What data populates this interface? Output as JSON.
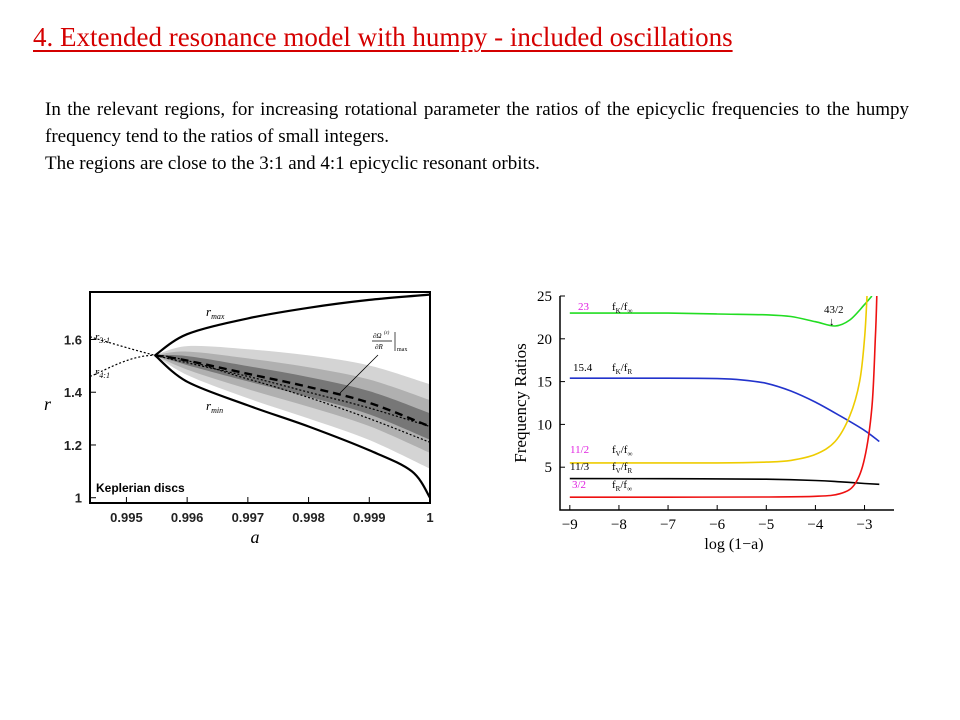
{
  "slide": {
    "title": "4. Extended resonance model with humpy - included oscillations",
    "paragraph1": "In the relevant regions, for increasing rotational parameter the ratios of the epicyclic frequencies to the humpy frequency tend to the ratios of small integers.",
    "paragraph2": "The regions are close to the 3:1 and 4:1 epicyclic resonant orbits."
  },
  "chart_data": [
    {
      "type": "line",
      "xlabel": "a",
      "ylabel": "r",
      "xlim": [
        0.9944,
        1.0
      ],
      "ylim": [
        0.98,
        1.78
      ],
      "x_ticks": [
        "0.995",
        "0.996",
        "0.997",
        "0.998",
        "0.999",
        "1"
      ],
      "y_ticks": [
        "1",
        "1.2",
        "1.4",
        "1.6"
      ],
      "grid": false,
      "annotations": {
        "r_max": "r",
        "r_max_sub": "max",
        "r_min": "r",
        "r_min_sub": "min",
        "r_31": "r",
        "r_31_sub": "3:1",
        "r_41": "r",
        "r_41_sub": "4:1",
        "bottom_label": "Keplerian discs"
      },
      "series": [
        {
          "name": "r_max",
          "points": [
            [
              0.99547,
              1.54
            ],
            [
              0.996,
              1.62
            ],
            [
              0.997,
              1.68
            ],
            [
              0.998,
              1.72
            ],
            [
              0.999,
              1.75
            ],
            [
              1.0,
              1.77
            ]
          ]
        },
        {
          "name": "r_min",
          "points": [
            [
              0.99547,
              1.54
            ],
            [
              0.996,
              1.44
            ],
            [
              0.997,
              1.35
            ],
            [
              0.998,
              1.27
            ],
            [
              0.999,
              1.18
            ],
            [
              0.9997,
              1.1
            ],
            [
              1.0,
              1.0
            ]
          ]
        },
        {
          "name": "r_3:1",
          "points": [
            [
              0.9944,
              1.61
            ],
            [
              0.99547,
              1.54
            ],
            [
              0.997,
              1.46
            ],
            [
              0.998,
              1.4
            ],
            [
              0.999,
              1.34
            ],
            [
              1.0,
              1.27
            ]
          ]
        },
        {
          "name": "r_4:1",
          "points": [
            [
              0.9944,
              1.46
            ],
            [
              0.99547,
              1.54
            ],
            [
              0.997,
              1.45
            ],
            [
              0.998,
              1.38
            ],
            [
              0.999,
              1.3
            ],
            [
              1.0,
              1.21
            ]
          ]
        },
        {
          "name": "r_peak",
          "points": [
            [
              0.99547,
              1.54
            ],
            [
              0.996,
              1.52
            ],
            [
              0.997,
              1.47
            ],
            [
              0.998,
              1.42
            ],
            [
              0.999,
              1.36
            ],
            [
              1.0,
              1.27
            ]
          ]
        }
      ]
    },
    {
      "type": "line",
      "xlabel": "log (1−a)",
      "ylabel": "Frequency Ratios",
      "xlim": [
        -9.2,
        -2.4
      ],
      "ylim": [
        0,
        25
      ],
      "x_ticks": [
        "−9",
        "−8",
        "−7",
        "−6",
        "−5",
        "−4",
        "−3"
      ],
      "y_ticks": [
        "5",
        "10",
        "15",
        "20",
        "25"
      ],
      "grid": false,
      "annotations": {
        "k_hump_value": "23",
        "k_r_value": "15.4",
        "v_hump_value": "11/2",
        "v_r_value": "11/3",
        "r_hump_value": "3/2",
        "peak_label": "43/2",
        "peak_arrow": "↓",
        "k_hump_lbl_f": "f",
        "k_hump_lbl_s1": "K",
        "k_hump_lbl_mid": "/f",
        "k_hump_lbl_s2": "∞",
        "k_r_lbl_f": "f",
        "k_r_lbl_s1": "K",
        "k_r_lbl_mid": "/f",
        "k_r_lbl_s2": "R",
        "v_hump_lbl_f": "f",
        "v_hump_lbl_s1": "V",
        "v_hump_lbl_mid": "/f",
        "v_hump_lbl_s2": "∞",
        "v_r_lbl_f": "f",
        "v_r_lbl_s1": "V",
        "v_r_lbl_mid": "/f",
        "v_r_lbl_s2": "R",
        "r_hump_lbl_f": "f",
        "r_hump_lbl_s1": "R",
        "r_hump_lbl_mid": "/f",
        "r_hump_lbl_s2": "∞"
      },
      "series": [
        {
          "name": "f_K/f_hump",
          "color": "#22dd22",
          "points": [
            [
              -9,
              23.0
            ],
            [
              -8,
              23.0
            ],
            [
              -7,
              23.0
            ],
            [
              -6,
              22.9
            ],
            [
              -5,
              22.8
            ],
            [
              -4.5,
              22.6
            ],
            [
              -4,
              22.0
            ],
            [
              -3.6,
              21.5
            ],
            [
              -3.3,
              22.2
            ],
            [
              -3.0,
              24.0
            ],
            [
              -2.85,
              25.0
            ]
          ]
        },
        {
          "name": "f_K/f_R",
          "color": "#2233cc",
          "points": [
            [
              -9,
              15.4
            ],
            [
              -8,
              15.4
            ],
            [
              -7,
              15.4
            ],
            [
              -6,
              15.35
            ],
            [
              -5.5,
              15.2
            ],
            [
              -5,
              14.8
            ],
            [
              -4.5,
              13.9
            ],
            [
              -4,
              12.6
            ],
            [
              -3.5,
              11.0
            ],
            [
              -3,
              9.3
            ],
            [
              -2.7,
              8.0
            ]
          ]
        },
        {
          "name": "f_V/f_hump",
          "color": "#eecc00",
          "points": [
            [
              -9,
              5.5
            ],
            [
              -8,
              5.5
            ],
            [
              -7,
              5.5
            ],
            [
              -6,
              5.5
            ],
            [
              -5,
              5.6
            ],
            [
              -4.5,
              5.8
            ],
            [
              -4,
              6.5
            ],
            [
              -3.6,
              8.0
            ],
            [
              -3.3,
              11.0
            ],
            [
              -3.1,
              15.0
            ],
            [
              -3.0,
              20.0
            ],
            [
              -2.95,
              25.0
            ]
          ]
        },
        {
          "name": "f_V/f_R",
          "color": "#000000",
          "points": [
            [
              -9,
              3.67
            ],
            [
              -7,
              3.66
            ],
            [
              -5,
              3.6
            ],
            [
              -4,
              3.45
            ],
            [
              -3.5,
              3.3
            ],
            [
              -3,
              3.1
            ],
            [
              -2.7,
              3.0
            ]
          ]
        },
        {
          "name": "f_R/f_hump",
          "color": "#ee1111",
          "points": [
            [
              -9,
              1.5
            ],
            [
              -7,
              1.5
            ],
            [
              -5,
              1.52
            ],
            [
              -4,
              1.6
            ],
            [
              -3.5,
              1.9
            ],
            [
              -3.2,
              3.0
            ],
            [
              -3.0,
              6.0
            ],
            [
              -2.85,
              12.0
            ],
            [
              -2.78,
              20.0
            ],
            [
              -2.75,
              25.0
            ]
          ]
        }
      ]
    }
  ]
}
